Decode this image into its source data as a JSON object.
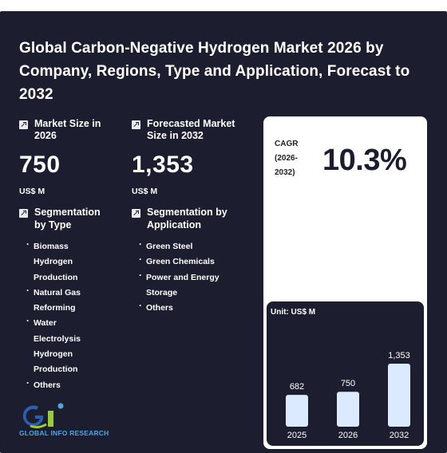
{
  "title": "Global Carbon-Negative Hydrogen Market 2026 by Company, Regions, Type and Application, Forecast to 2032",
  "market_size": {
    "label": "Market Size in 2026",
    "value": "750",
    "unit": "US$ M"
  },
  "forecast_size": {
    "label": "Forecasted Market Size in 2032",
    "value": "1,353",
    "unit": "US$ M"
  },
  "seg_type": {
    "label": "Segmentation by Type",
    "items": [
      "Biomass Hydrogen Production",
      "Natural Gas Reforming",
      "Water Electrolysis Hydrogen Production",
      "Others"
    ]
  },
  "seg_app": {
    "label": "Segmentation by Application",
    "items": [
      "Green Steel",
      "Green Chemicals",
      "Power and Energy Storage",
      "Others"
    ]
  },
  "cagr": {
    "label": "CAGR (2026-2032)",
    "value": "10.3%"
  },
  "logo_text": "GLOBAL INFO RESEARCH",
  "colors": {
    "background": "#1c1d2e",
    "bar": "#dbeafe",
    "logo": "#4ca7e8"
  },
  "chart_data": {
    "type": "bar",
    "unit_label": "Unit: US$ M",
    "categories": [
      "2025",
      "2026",
      "2032"
    ],
    "values": [
      682,
      750,
      1353
    ],
    "value_labels": [
      "682",
      "750",
      "1,353"
    ]
  }
}
